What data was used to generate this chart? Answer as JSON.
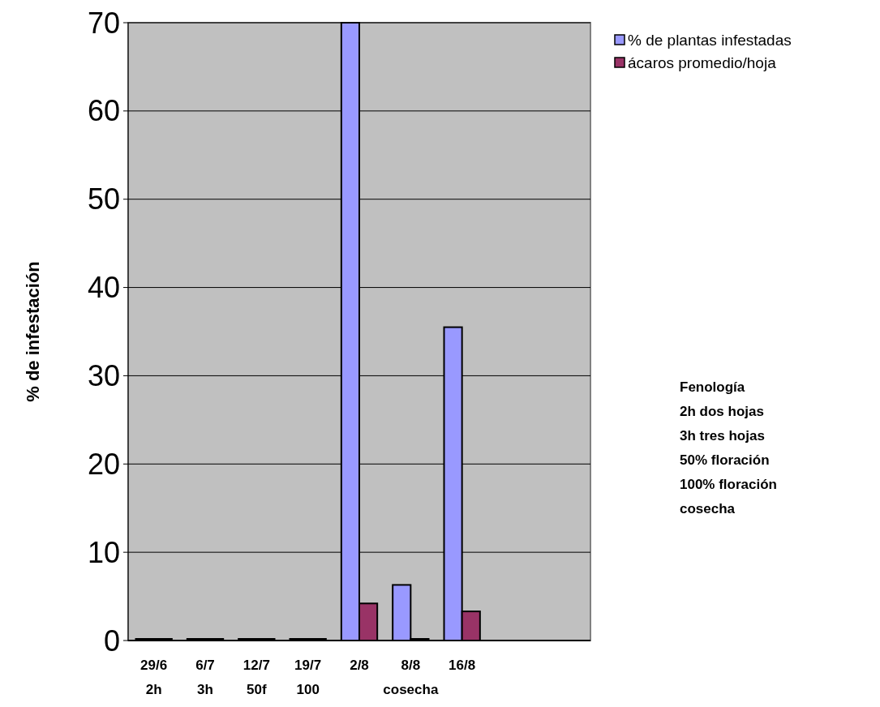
{
  "chart_data": {
    "type": "bar",
    "ylabel": "% de infestación",
    "categories": [
      "29/6\n2h",
      "6/7\n3h",
      "12/7\n50f",
      "19/7\n100",
      "2/8",
      "8/8\ncosecha",
      "16/8",
      null,
      null
    ],
    "series": [
      {
        "name": "% de plantas infestadas",
        "color": "#9999ff",
        "values": [
          0,
          0,
          0,
          0,
          70,
          6.3,
          35.5,
          null,
          null
        ]
      },
      {
        "name": "ácaros promedio/hoja",
        "color": "#993366",
        "values": [
          0,
          0,
          0,
          0,
          4.2,
          0,
          3.3,
          null,
          null
        ]
      }
    ],
    "ylim": [
      0,
      70
    ],
    "yticks": [
      0,
      10,
      20,
      30,
      40,
      50,
      60,
      70
    ],
    "grid": "y",
    "legend": "top right",
    "annotations": [
      "Fenología\n2h dos hojas\n3h tres hojas\n50% floración\n100% floración\ncosecha"
    ]
  }
}
